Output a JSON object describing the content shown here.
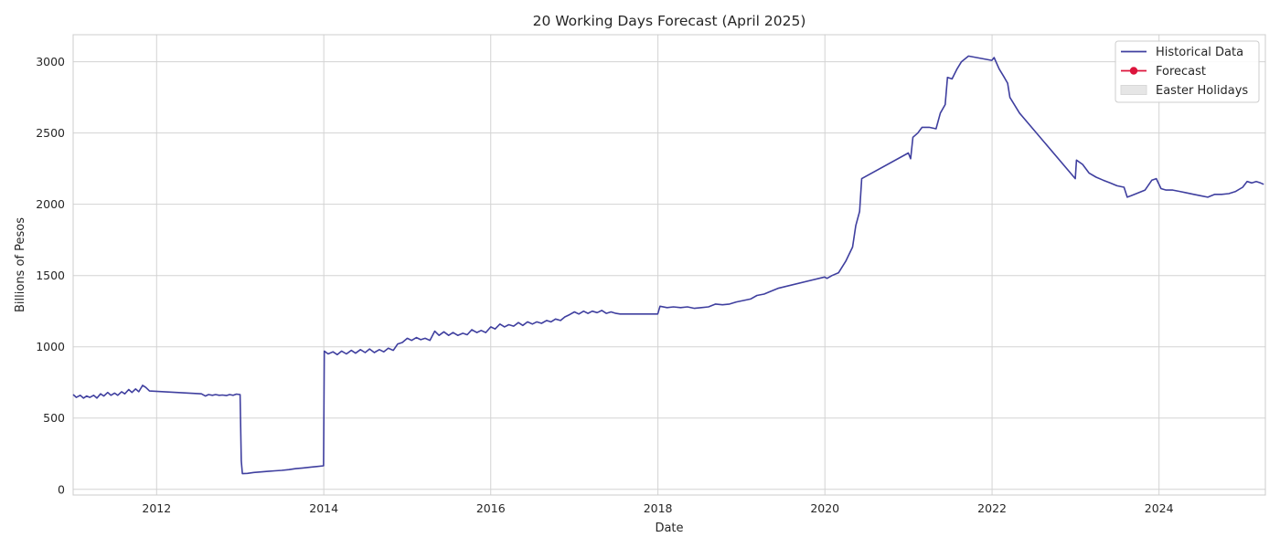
{
  "chart_data": {
    "type": "line",
    "title": "20 Working Days Forecast (April 2025)",
    "xlabel": "Date",
    "ylabel": "Billions of Pesos",
    "xlim": [
      "2011-01-01",
      "2025-04-10"
    ],
    "ylim": [
      -40,
      3190
    ],
    "x_ticks": [
      "2012",
      "2014",
      "2016",
      "2018",
      "2020",
      "2022",
      "2024"
    ],
    "y_ticks": [
      0,
      500,
      1000,
      1500,
      2000,
      2500,
      3000
    ],
    "grid": true,
    "legend_position": "top-right",
    "legend": [
      {
        "label": "Historical Data",
        "kind": "line",
        "color": "#3f3f9f"
      },
      {
        "label": "Forecast",
        "kind": "line-marker",
        "color": "#dc143c"
      },
      {
        "label": "Easter Holidays",
        "kind": "patch",
        "color": "#e6e6e6"
      }
    ],
    "series": [
      {
        "name": "Historical Data",
        "color": "#3f3f9f",
        "points": [
          [
            "2011-01-01",
            665
          ],
          [
            "2011-01-15",
            645
          ],
          [
            "2011-02-01",
            660
          ],
          [
            "2011-02-15",
            640
          ],
          [
            "2011-03-01",
            655
          ],
          [
            "2011-03-15",
            645
          ],
          [
            "2011-04-01",
            660
          ],
          [
            "2011-04-15",
            640
          ],
          [
            "2011-05-01",
            670
          ],
          [
            "2011-05-15",
            655
          ],
          [
            "2011-06-01",
            680
          ],
          [
            "2011-06-15",
            660
          ],
          [
            "2011-07-01",
            675
          ],
          [
            "2011-07-15",
            660
          ],
          [
            "2011-08-01",
            685
          ],
          [
            "2011-08-15",
            670
          ],
          [
            "2011-09-01",
            700
          ],
          [
            "2011-09-15",
            680
          ],
          [
            "2011-10-01",
            705
          ],
          [
            "2011-10-15",
            685
          ],
          [
            "2011-11-01",
            730
          ],
          [
            "2011-11-15",
            715
          ],
          [
            "2011-12-01",
            690
          ],
          [
            "2012-07-15",
            670
          ],
          [
            "2012-08-01",
            655
          ],
          [
            "2012-08-15",
            665
          ],
          [
            "2012-09-01",
            660
          ],
          [
            "2012-09-15",
            665
          ],
          [
            "2012-10-01",
            660
          ],
          [
            "2012-10-15",
            662
          ],
          [
            "2012-11-01",
            658
          ],
          [
            "2012-11-15",
            665
          ],
          [
            "2012-12-01",
            660
          ],
          [
            "2012-12-15",
            668
          ],
          [
            "2012-12-31",
            665
          ],
          [
            "2013-01-05",
            200
          ],
          [
            "2013-01-10",
            110
          ],
          [
            "2013-02-01",
            112
          ],
          [
            "2013-03-01",
            118
          ],
          [
            "2013-04-01",
            122
          ],
          [
            "2013-05-01",
            126
          ],
          [
            "2013-06-01",
            130
          ],
          [
            "2013-07-01",
            133
          ],
          [
            "2013-08-01",
            138
          ],
          [
            "2013-09-01",
            145
          ],
          [
            "2013-10-01",
            150
          ],
          [
            "2013-11-01",
            155
          ],
          [
            "2013-12-01",
            160
          ],
          [
            "2013-12-31",
            165
          ],
          [
            "2014-01-03",
            970
          ],
          [
            "2014-01-20",
            950
          ],
          [
            "2014-02-10",
            965
          ],
          [
            "2014-03-01",
            945
          ],
          [
            "2014-03-20",
            970
          ],
          [
            "2014-04-10",
            950
          ],
          [
            "2014-05-01",
            975
          ],
          [
            "2014-05-20",
            955
          ],
          [
            "2014-06-10",
            980
          ],
          [
            "2014-07-01",
            960
          ],
          [
            "2014-07-20",
            985
          ],
          [
            "2014-08-10",
            960
          ],
          [
            "2014-09-01",
            980
          ],
          [
            "2014-09-20",
            965
          ],
          [
            "2014-10-10",
            990
          ],
          [
            "2014-11-01",
            975
          ],
          [
            "2014-11-20",
            1020
          ],
          [
            "2014-12-10",
            1030
          ],
          [
            "2015-01-01",
            1060
          ],
          [
            "2015-01-20",
            1045
          ],
          [
            "2015-02-10",
            1065
          ],
          [
            "2015-03-01",
            1050
          ],
          [
            "2015-03-20",
            1060
          ],
          [
            "2015-04-10",
            1045
          ],
          [
            "2015-05-01",
            1110
          ],
          [
            "2015-05-20",
            1080
          ],
          [
            "2015-06-10",
            1105
          ],
          [
            "2015-07-01",
            1080
          ],
          [
            "2015-07-20",
            1100
          ],
          [
            "2015-08-10",
            1080
          ],
          [
            "2015-09-01",
            1095
          ],
          [
            "2015-09-20",
            1085
          ],
          [
            "2015-10-10",
            1120
          ],
          [
            "2015-11-01",
            1100
          ],
          [
            "2015-11-20",
            1115
          ],
          [
            "2015-12-10",
            1100
          ],
          [
            "2016-01-01",
            1140
          ],
          [
            "2016-01-20",
            1125
          ],
          [
            "2016-02-10",
            1160
          ],
          [
            "2016-03-01",
            1140
          ],
          [
            "2016-03-20",
            1155
          ],
          [
            "2016-04-10",
            1145
          ],
          [
            "2016-05-01",
            1170
          ],
          [
            "2016-05-20",
            1150
          ],
          [
            "2016-06-10",
            1175
          ],
          [
            "2016-07-01",
            1160
          ],
          [
            "2016-07-20",
            1175
          ],
          [
            "2016-08-10",
            1165
          ],
          [
            "2016-09-01",
            1185
          ],
          [
            "2016-09-20",
            1175
          ],
          [
            "2016-10-10",
            1195
          ],
          [
            "2016-11-01",
            1185
          ],
          [
            "2016-11-20",
            1210
          ],
          [
            "2016-12-10",
            1225
          ],
          [
            "2017-01-01",
            1245
          ],
          [
            "2017-01-20",
            1230
          ],
          [
            "2017-02-10",
            1250
          ],
          [
            "2017-03-01",
            1235
          ],
          [
            "2017-03-20",
            1250
          ],
          [
            "2017-04-10",
            1240
          ],
          [
            "2017-05-01",
            1255
          ],
          [
            "2017-05-20",
            1235
          ],
          [
            "2017-06-10",
            1245
          ],
          [
            "2017-07-01",
            1235
          ],
          [
            "2017-07-20",
            1230
          ],
          [
            "2017-08-15",
            1230
          ],
          [
            "2017-12-31",
            1230
          ],
          [
            "2018-01-10",
            1285
          ],
          [
            "2018-02-10",
            1275
          ],
          [
            "2018-03-10",
            1280
          ],
          [
            "2018-04-10",
            1275
          ],
          [
            "2018-05-10",
            1280
          ],
          [
            "2018-06-10",
            1270
          ],
          [
            "2018-07-10",
            1275
          ],
          [
            "2018-08-10",
            1280
          ],
          [
            "2018-09-10",
            1300
          ],
          [
            "2018-10-10",
            1295
          ],
          [
            "2018-11-10",
            1300
          ],
          [
            "2018-12-10",
            1315
          ],
          [
            "2019-01-10",
            1325
          ],
          [
            "2019-02-10",
            1335
          ],
          [
            "2019-03-10",
            1360
          ],
          [
            "2019-04-10",
            1370
          ],
          [
            "2019-05-10",
            1390
          ],
          [
            "2019-06-10",
            1410
          ],
          [
            "2019-12-31",
            1490
          ],
          [
            "2020-01-10",
            1480
          ],
          [
            "2020-02-01",
            1500
          ],
          [
            "2020-03-01",
            1520
          ],
          [
            "2020-04-01",
            1600
          ],
          [
            "2020-05-01",
            1700
          ],
          [
            "2020-05-15",
            1850
          ],
          [
            "2020-06-01",
            1950
          ],
          [
            "2020-06-10",
            2180
          ],
          [
            "2020-12-31",
            2360
          ],
          [
            "2021-01-10",
            2320
          ],
          [
            "2021-01-20",
            2470
          ],
          [
            "2021-02-10",
            2500
          ],
          [
            "2021-03-01",
            2540
          ],
          [
            "2021-04-01",
            2540
          ],
          [
            "2021-05-01",
            2530
          ],
          [
            "2021-05-20",
            2640
          ],
          [
            "2021-06-10",
            2700
          ],
          [
            "2021-06-20",
            2890
          ],
          [
            "2021-07-10",
            2880
          ],
          [
            "2021-08-01",
            2950
          ],
          [
            "2021-08-20",
            3000
          ],
          [
            "2021-09-20",
            3040
          ],
          [
            "2021-12-31",
            3010
          ],
          [
            "2022-01-10",
            3030
          ],
          [
            "2022-02-01",
            2950
          ],
          [
            "2022-02-20",
            2900
          ],
          [
            "2022-03-10",
            2850
          ],
          [
            "2022-03-20",
            2750
          ],
          [
            "2022-05-01",
            2640
          ],
          [
            "2022-12-31",
            2180
          ],
          [
            "2023-01-05",
            2310
          ],
          [
            "2023-02-01",
            2280
          ],
          [
            "2023-03-01",
            2220
          ],
          [
            "2023-04-01",
            2190
          ],
          [
            "2023-05-01",
            2170
          ],
          [
            "2023-06-01",
            2150
          ],
          [
            "2023-07-01",
            2130
          ],
          [
            "2023-08-01",
            2120
          ],
          [
            "2023-08-15",
            2050
          ],
          [
            "2023-09-01",
            2060
          ],
          [
            "2023-10-01",
            2080
          ],
          [
            "2023-11-01",
            2100
          ],
          [
            "2023-12-01",
            2170
          ],
          [
            "2023-12-20",
            2180
          ],
          [
            "2024-01-10",
            2110
          ],
          [
            "2024-02-01",
            2100
          ],
          [
            "2024-03-01",
            2100
          ],
          [
            "2024-04-01",
            2090
          ],
          [
            "2024-05-01",
            2080
          ],
          [
            "2024-06-01",
            2070
          ],
          [
            "2024-07-01",
            2060
          ],
          [
            "2024-08-01",
            2050
          ],
          [
            "2024-09-01",
            2070
          ],
          [
            "2024-10-01",
            2070
          ],
          [
            "2024-11-01",
            2075
          ],
          [
            "2024-12-01",
            2090
          ],
          [
            "2025-01-01",
            2120
          ],
          [
            "2025-01-20",
            2160
          ],
          [
            "2025-02-10",
            2150
          ],
          [
            "2025-03-01",
            2160
          ],
          [
            "2025-03-20",
            2150
          ],
          [
            "2025-04-03",
            2140
          ]
        ]
      }
    ]
  }
}
